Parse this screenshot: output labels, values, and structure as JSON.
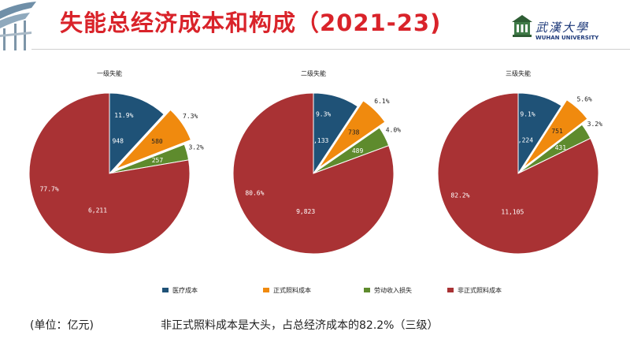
{
  "title": "失能总经济成本和构成（2021-23)",
  "logo": {
    "name_cn": "武漢大學",
    "name_en": "WUHAN UNIVERSITY"
  },
  "footer": {
    "unit": "(单位：亿元)",
    "note": "非正式照料成本是大头，占总经济成本的82.2%（三级）"
  },
  "chart_data": [
    {
      "type": "pie",
      "title": "一级失能",
      "categories": [
        "医疗成本",
        "正式照料成本",
        "劳动收入损失",
        "非正式照料成本"
      ],
      "values": [
        948,
        580,
        257,
        6211
      ],
      "value_labels": [
        "948",
        "580",
        "257",
        "6,211"
      ],
      "percent_labels": [
        "11.9%",
        "7.3%",
        "3.2%",
        "77.7%"
      ],
      "exploded": [
        false,
        true,
        false,
        false
      ]
    },
    {
      "type": "pie",
      "title": "二级失能",
      "categories": [
        "医疗成本",
        "正式照料成本",
        "劳动收入损失",
        "非正式照料成本"
      ],
      "values": [
        1133,
        738,
        489,
        9823
      ],
      "value_labels": [
        "1,133",
        "738",
        "489",
        "9,823"
      ],
      "percent_labels": [
        "9.3%",
        "6.1%",
        "4.0%",
        "80.6%"
      ],
      "exploded": [
        false,
        true,
        false,
        false
      ]
    },
    {
      "type": "pie",
      "title": "三级失能",
      "categories": [
        "医疗成本",
        "正式照料成本",
        "劳动收入损失",
        "非正式照料成本"
      ],
      "values": [
        1224,
        751,
        431,
        11105
      ],
      "value_labels": [
        "1,224",
        "751",
        "431",
        "11,105"
      ],
      "percent_labels": [
        "9.1%",
        "5.6%",
        "3.2%",
        "82.2%"
      ],
      "exploded": [
        false,
        true,
        false,
        false
      ]
    }
  ],
  "legend": [
    {
      "label": "医疗成本",
      "color": "#1f5277"
    },
    {
      "label": "正式照料成本",
      "color": "#f08a0e"
    },
    {
      "label": "劳动收入损失",
      "color": "#5e8b2d"
    },
    {
      "label": "非正式照料成本",
      "color": "#a93234"
    }
  ]
}
